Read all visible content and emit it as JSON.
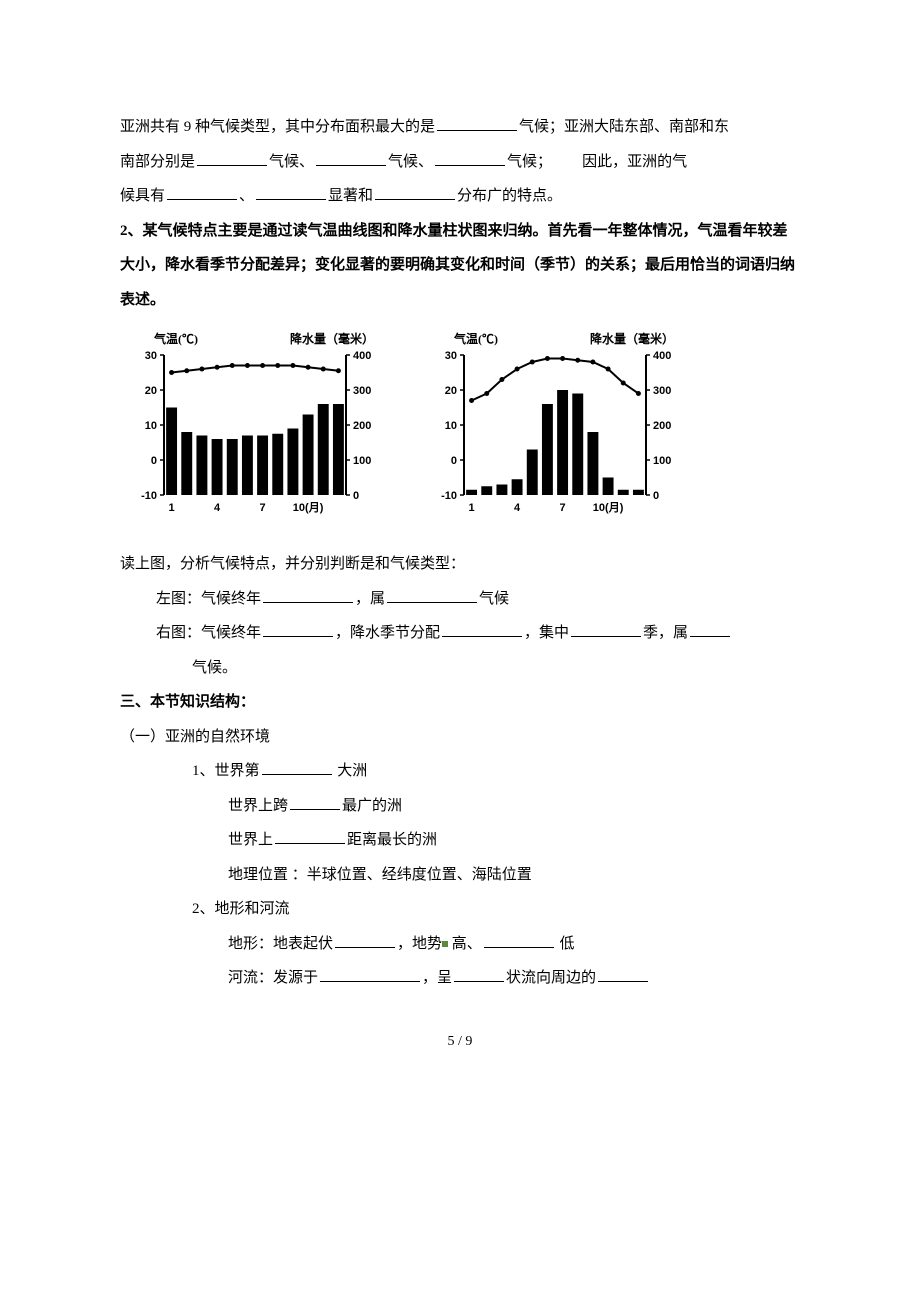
{
  "para1": {
    "t1": "亚洲共有 9 种气候类型，其中分布面积最大的是",
    "t2": "气候；亚洲大陆东部、南部和东",
    "t3": "南部分别是",
    "t4": "气候、",
    "t5": "气候、",
    "t6": "气候；",
    "t7": "因此，亚洲的气",
    "t8": "候具有",
    "t9": "、",
    "t10": "显著和",
    "t11": "分布广的特点。"
  },
  "para2": "2、某气候特点主要是通过读气温曲线图和降水量柱状图来归纳。首先看一年整体情况，气温看年较差大小，降水看季节分配差异；变化显著的要明确其变化和时间（季节）的关系；最后用恰当的词语归纳表述。",
  "chart_left": {
    "type": "combo-bar-line",
    "temp_label": "气温(℃)",
    "precip_label": "降水量（毫米）",
    "x_labels": [
      "1",
      "4",
      "7",
      "10(月)"
    ],
    "y_left_ticks": [
      -10,
      0,
      10,
      20,
      30
    ],
    "y_right_ticks": [
      0,
      100,
      200,
      300,
      400
    ],
    "temp_values": [
      25,
      25.5,
      26,
      26.5,
      27,
      27,
      27,
      27,
      27,
      26.5,
      26,
      25.5
    ],
    "precip_values": [
      250,
      180,
      170,
      160,
      160,
      170,
      170,
      175,
      190,
      230,
      260,
      260
    ],
    "bar_color": "#000000",
    "line_color": "#000000",
    "marker": "circle",
    "line_width": 2,
    "background_color": "#ffffff",
    "font_size": 11
  },
  "chart_right": {
    "type": "combo-bar-line",
    "temp_label": "气温(℃)",
    "precip_label": "降水量（毫米）",
    "x_labels": [
      "1",
      "4",
      "7",
      "10(月)"
    ],
    "y_left_ticks": [
      -10,
      0,
      10,
      20,
      30
    ],
    "y_right_ticks": [
      0,
      100,
      200,
      300,
      400
    ],
    "temp_values": [
      17,
      19,
      23,
      26,
      28,
      29,
      29,
      28.5,
      28,
      26,
      22,
      19
    ],
    "precip_values": [
      15,
      25,
      30,
      45,
      130,
      260,
      300,
      290,
      180,
      50,
      15,
      15
    ],
    "bar_color": "#000000",
    "line_color": "#000000",
    "marker": "circle",
    "line_width": 2,
    "background_color": "#ffffff",
    "font_size": 11
  },
  "read_intro": "读上图，分析气候特点，并分别判断是和气候类型：",
  "left_fig": {
    "t1": "左图：气候终年",
    "t2": "，属",
    "t3": "气候"
  },
  "right_fig": {
    "t1": "右图：气候终年",
    "t2": "，降水季节分配",
    "t3": "，集中",
    "t4": "季，属",
    "t5": "气候。"
  },
  "section3_title": "三、本节知识结构：",
  "sec3_1_title": "（一）亚洲的自然环境",
  "sec3_1_1": {
    "t1": "1、世界第",
    "t2": " 大洲"
  },
  "sec3_1_1a": {
    "t1": "世界上跨",
    "t2": "最广的洲"
  },
  "sec3_1_1b": {
    "t1": "世界上",
    "t2": "距离最长的洲"
  },
  "sec3_1_1c": "地理位置 ：半球位置、经纬度位置、海陆位置",
  "sec3_1_2": "2、地形和河流",
  "sec3_1_2a": {
    "t1": "地形：地表起伏",
    "t2": "，地势",
    "t3": " 高、",
    "t4": " 低"
  },
  "sec3_1_2b": {
    "t1": "河流：发源于",
    "t2": "，呈",
    "t3": "状流向周边的"
  },
  "footer": "5 / 9",
  "green_dot_color": "#5a8a3a"
}
